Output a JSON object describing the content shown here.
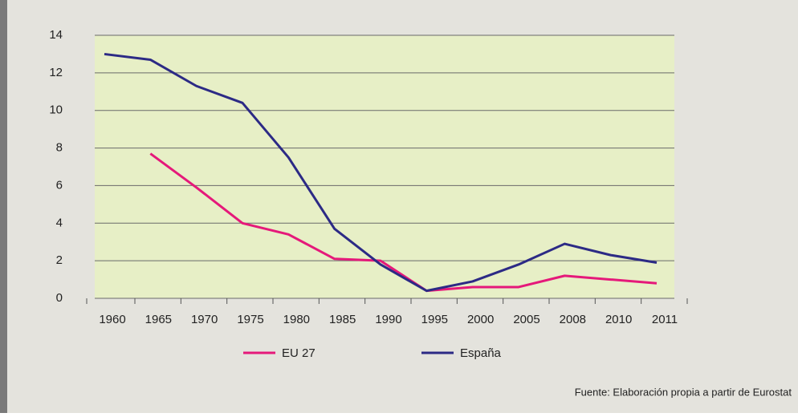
{
  "chart_data": {
    "type": "line",
    "categories": [
      "1960",
      "1965",
      "1970",
      "1975",
      "1980",
      "1985",
      "1990",
      "1995",
      "2000",
      "2005",
      "2008",
      "2010",
      "2011"
    ],
    "series": [
      {
        "name": "EU 27",
        "color": "#e5197a",
        "values": [
          null,
          7.7,
          5.9,
          4.0,
          3.4,
          2.1,
          2.0,
          0.4,
          0.6,
          0.6,
          1.2,
          1.0,
          0.8
        ]
      },
      {
        "name": "España",
        "color": "#2c2a85",
        "values": [
          13.0,
          12.7,
          11.3,
          10.4,
          7.5,
          3.7,
          1.8,
          0.4,
          0.9,
          1.8,
          2.9,
          2.3,
          1.9
        ]
      }
    ],
    "ylim": [
      0,
      14
    ],
    "yticks": [
      0,
      2,
      4,
      6,
      8,
      10,
      12,
      14
    ],
    "grid": true,
    "source": "Fuente: Elaboración propia a partir de Eurostat"
  }
}
